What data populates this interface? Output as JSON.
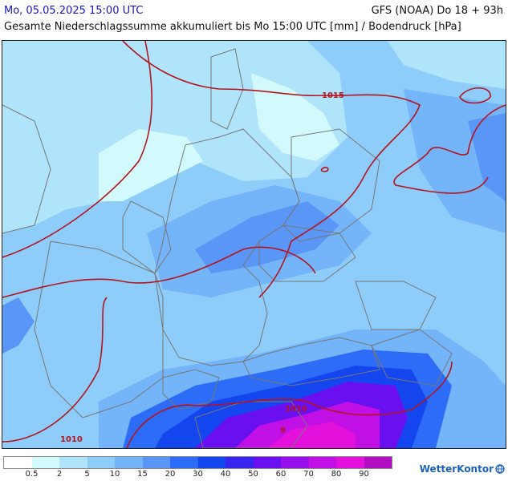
{
  "header": {
    "valid_time": "Mo, 05.05.2025 15:00 UTC",
    "model_run": "GFS (NOAA) Do 18 + 93h",
    "subtitle": "Gesamte Niederschlagssumme akkumuliert bis Mo 15:00 UTC [mm] / Bodendruck [hPa]"
  },
  "map": {
    "isobar_labels": [
      "1015",
      "1010",
      "1010",
      "1010"
    ],
    "isobar_color": "#b4141e",
    "border_color": "#777777"
  },
  "legend": {
    "colors": [
      "#ffffff",
      "#d2fafc",
      "#b0e4fb",
      "#8ecdf9",
      "#74b4f8",
      "#5a96f6",
      "#2c6cf6",
      "#1446f0",
      "#3a24f0",
      "#6a10f0",
      "#9610ee",
      "#c010e6",
      "#e410dc",
      "#b40ec4"
    ],
    "labels": [
      "0.5",
      "2",
      "5",
      "10",
      "15",
      "20",
      "30",
      "40",
      "50",
      "60",
      "70",
      "80",
      "90"
    ]
  },
  "brand": {
    "name": "WetterKontor"
  }
}
